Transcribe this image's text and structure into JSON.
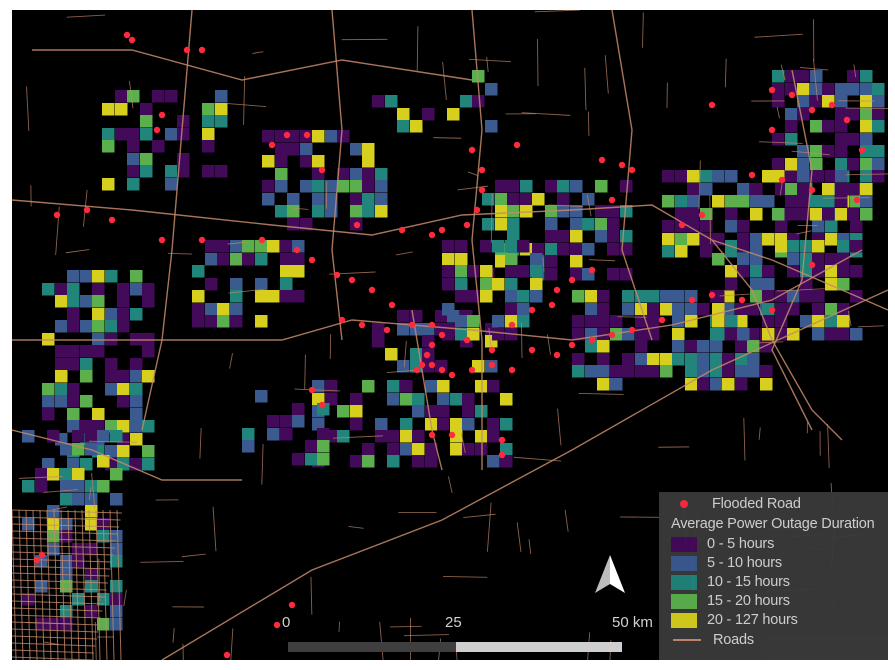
{
  "map": {
    "background_color": "#000000",
    "road_color": "#c58a6a",
    "flood_color": "#ff2a3c"
  },
  "legend": {
    "flooded_road_label": "Flooded Road",
    "title": "Average Power Outage Duration",
    "classes": [
      {
        "label": "0 - 5 hours",
        "color": "#440a5a"
      },
      {
        "label": "5 - 10 hours",
        "color": "#3b5a8f"
      },
      {
        "label": "10 - 15 hours",
        "color": "#21857c"
      },
      {
        "label": "15 - 20 hours",
        "color": "#5bb04d"
      },
      {
        "label": "20 - 127 hours",
        "color": "#d6cf1d"
      }
    ],
    "roads_label": "Roads"
  },
  "scale_bar": {
    "labels": [
      "0",
      "25",
      "50 km"
    ],
    "dark_color": "#3f3f3f",
    "light_color": "#cfcfcf"
  },
  "north_arrow": {
    "icon": "north-arrow-icon"
  }
}
